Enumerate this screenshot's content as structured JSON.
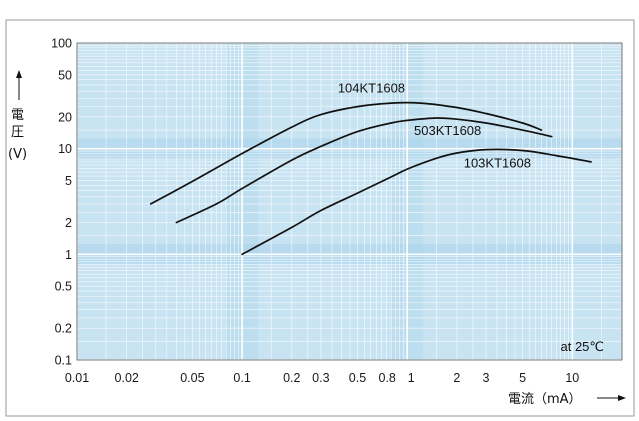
{
  "chart_data": {
    "type": "line",
    "title": "",
    "xlabel": "電流（mA）",
    "ylabel_line1": "電",
    "ylabel_line2": "圧",
    "ylabel_unit": "(V)",
    "xscale": "log",
    "yscale": "log",
    "xlim": [
      0.01,
      20
    ],
    "ylim": [
      0.1,
      100
    ],
    "x_ticks": [
      {
        "value": 0.01,
        "label": "0.01"
      },
      {
        "value": 0.02,
        "label": "0.02"
      },
      {
        "value": 0.05,
        "label": "0.05"
      },
      {
        "value": 0.1,
        "label": "0.1"
      },
      {
        "value": 0.2,
        "label": "0.2"
      },
      {
        "value": 0.3,
        "label": "0.3"
      },
      {
        "value": 0.5,
        "label": "0.5"
      },
      {
        "value": 0.8,
        "label": "0.8"
      },
      {
        "value": 1,
        "label": "1"
      },
      {
        "value": 2,
        "label": "2"
      },
      {
        "value": 3,
        "label": "3"
      },
      {
        "value": 5,
        "label": "5"
      },
      {
        "value": 10,
        "label": "10"
      }
    ],
    "y_ticks": [
      {
        "value": 100,
        "label": "100"
      },
      {
        "value": 50,
        "label": "50"
      },
      {
        "value": 20,
        "label": "20"
      },
      {
        "value": 10,
        "label": "10"
      },
      {
        "value": 5,
        "label": "5"
      },
      {
        "value": 2,
        "label": "2"
      },
      {
        "value": 1,
        "label": "1"
      },
      {
        "value": 0.5,
        "label": "0.5"
      },
      {
        "value": 0.2,
        "label": "0.2"
      },
      {
        "value": 0.1,
        "label": "0.1"
      }
    ],
    "grid": true,
    "annotation": "at 25℃",
    "series": [
      {
        "name": "104KT1608",
        "label_at": {
          "x": 0.38,
          "y": 34
        },
        "points": [
          {
            "x": 0.028,
            "y": 3.0
          },
          {
            "x": 0.05,
            "y": 4.9
          },
          {
            "x": 0.1,
            "y": 9.0
          },
          {
            "x": 0.2,
            "y": 16
          },
          {
            "x": 0.3,
            "y": 21
          },
          {
            "x": 0.5,
            "y": 25
          },
          {
            "x": 0.8,
            "y": 27
          },
          {
            "x": 1.2,
            "y": 27
          },
          {
            "x": 2,
            "y": 24.5
          },
          {
            "x": 3,
            "y": 21.5
          },
          {
            "x": 5,
            "y": 17.5
          },
          {
            "x": 6.5,
            "y": 15
          }
        ]
      },
      {
        "name": "503KT1608",
        "label_at": {
          "x": 1.1,
          "y": 13.5
        },
        "points": [
          {
            "x": 0.04,
            "y": 2.0
          },
          {
            "x": 0.07,
            "y": 3.0
          },
          {
            "x": 0.1,
            "y": 4.2
          },
          {
            "x": 0.2,
            "y": 7.8
          },
          {
            "x": 0.3,
            "y": 10.5
          },
          {
            "x": 0.5,
            "y": 14.5
          },
          {
            "x": 0.8,
            "y": 17.5
          },
          {
            "x": 1,
            "y": 18.5
          },
          {
            "x": 1.5,
            "y": 19.5
          },
          {
            "x": 2,
            "y": 19
          },
          {
            "x": 3,
            "y": 17.5
          },
          {
            "x": 5,
            "y": 15
          },
          {
            "x": 7.5,
            "y": 13
          }
        ]
      },
      {
        "name": "103KT1608",
        "label_at": {
          "x": 2.2,
          "y": 6.6
        },
        "points": [
          {
            "x": 0.1,
            "y": 1.0
          },
          {
            "x": 0.2,
            "y": 1.8
          },
          {
            "x": 0.3,
            "y": 2.6
          },
          {
            "x": 0.5,
            "y": 3.8
          },
          {
            "x": 0.8,
            "y": 5.4
          },
          {
            "x": 1,
            "y": 6.4
          },
          {
            "x": 1.5,
            "y": 8.1
          },
          {
            "x": 2,
            "y": 9.1
          },
          {
            "x": 3,
            "y": 9.8
          },
          {
            "x": 5,
            "y": 9.6
          },
          {
            "x": 8,
            "y": 8.6
          },
          {
            "x": 13,
            "y": 7.5
          }
        ]
      }
    ]
  },
  "colors": {
    "plot_bg": "#c8e3f2",
    "grid_minor": "#ffffff",
    "grid_major": "#ffffff",
    "band": "#a9d3ec",
    "curve": "#111111",
    "frame": "#555555"
  }
}
